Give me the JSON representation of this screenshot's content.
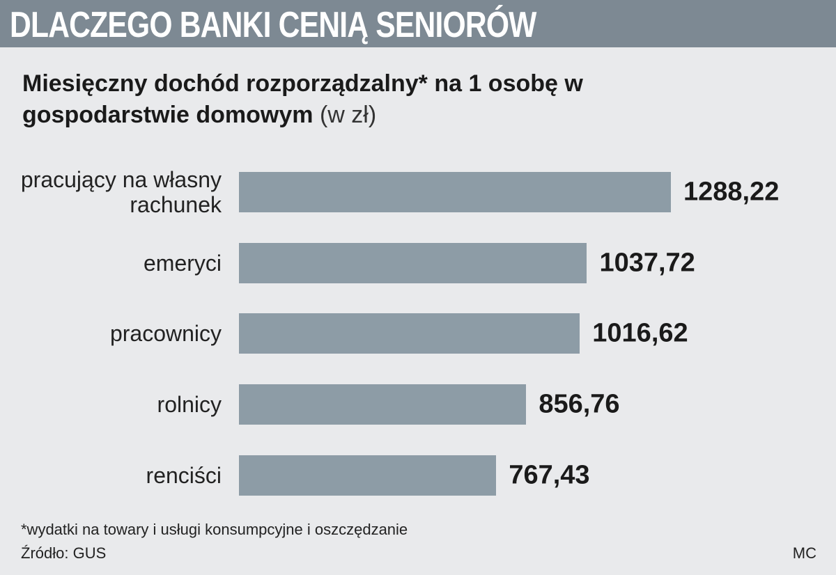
{
  "chart_data": {
    "type": "bar",
    "orientation": "horizontal",
    "title": "DLACZEGO BANKI CENIĄ SENIORÓW",
    "subtitle": "Miesięczny dochód rozporządzalny* na 1 osobę w gospodarstwie domowym",
    "unit": "(w zł)",
    "categories": [
      "pracujący na własny rachunek",
      "emeryci",
      "pracownicy",
      "rolnicy",
      "renciści"
    ],
    "values": [
      1288.22,
      1037.72,
      1016.62,
      856.76,
      767.43
    ],
    "value_labels": [
      "1288,22",
      "1037,72",
      "1016,62",
      "856,76",
      "767,43"
    ],
    "color": "#8d9ca6",
    "footnote": "*wydatki na towary i usługi konsumpcyjne i oszczędzanie",
    "source": "Źródło: GUS",
    "author": "MC"
  }
}
